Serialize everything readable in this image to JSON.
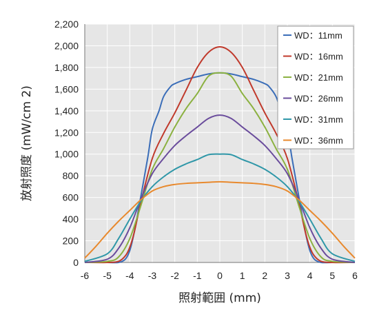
{
  "chart_data": {
    "type": "line",
    "xlabel": "照射範囲 (mm)",
    "ylabel": "放射照度 (mW/cm 2)",
    "xlim": [
      -6,
      6
    ],
    "ylim": [
      0,
      2200
    ],
    "xticks": [
      -6,
      -5,
      -4,
      -3,
      -2,
      -1,
      0,
      1,
      2,
      3,
      4,
      5,
      6
    ],
    "yticks": [
      0,
      200,
      400,
      600,
      800,
      1000,
      1200,
      1400,
      1600,
      1800,
      2000,
      2200
    ],
    "ytick_labels": [
      "0",
      "200",
      "400",
      "600",
      "800",
      "1,000",
      "1,200",
      "1,400",
      "1,600",
      "1,800",
      "2,000",
      "2,200"
    ],
    "grid": true,
    "legend_position": "top-right",
    "series": [
      {
        "name": "WD：11mm",
        "color": "#3a6db8",
        "x": [
          -6,
          -5,
          -4.5,
          -4.2,
          -4,
          -3.8,
          -3.5,
          -3.2,
          -3,
          -2.7,
          -2.5,
          -2.2,
          -2,
          -1.5,
          -1,
          -0.5,
          0,
          0.5,
          1,
          1.5,
          2,
          2.2,
          2.5,
          2.7,
          3,
          3.2,
          3.5,
          3.8,
          4,
          4.2,
          4.5,
          5,
          6
        ],
        "y": [
          0,
          0,
          0,
          30,
          110,
          280,
          620,
          970,
          1230,
          1400,
          1530,
          1620,
          1650,
          1690,
          1715,
          1740,
          1750,
          1740,
          1715,
          1690,
          1650,
          1620,
          1530,
          1400,
          1230,
          970,
          620,
          280,
          110,
          30,
          0,
          0,
          0
        ]
      },
      {
        "name": "WD：16mm",
        "color": "#c0392b",
        "x": [
          -6,
          -5,
          -4.5,
          -4.2,
          -4,
          -3.8,
          -3.5,
          -3,
          -2.5,
          -2,
          -1.5,
          -1,
          -0.5,
          0,
          0.5,
          1,
          1.5,
          2,
          2.5,
          3,
          3.5,
          3.8,
          4,
          4.2,
          4.5,
          5,
          6
        ],
        "y": [
          0,
          0,
          10,
          60,
          140,
          280,
          560,
          960,
          1190,
          1380,
          1590,
          1800,
          1940,
          1990,
          1940,
          1800,
          1590,
          1380,
          1190,
          960,
          560,
          280,
          140,
          60,
          10,
          0,
          0
        ]
      },
      {
        "name": "WD：21mm",
        "color": "#8bb140",
        "x": [
          -6,
          -5,
          -4.5,
          -4,
          -3.5,
          -3,
          -2.5,
          -2,
          -1.5,
          -1,
          -0.5,
          0,
          0.5,
          1,
          1.5,
          2,
          2.5,
          3,
          3.5,
          4,
          4.5,
          5,
          6
        ],
        "y": [
          0,
          10,
          50,
          220,
          530,
          860,
          1050,
          1250,
          1420,
          1560,
          1720,
          1750,
          1720,
          1560,
          1420,
          1250,
          1050,
          860,
          530,
          220,
          50,
          10,
          0
        ]
      },
      {
        "name": "WD：26mm",
        "color": "#6a4c9c",
        "x": [
          -6,
          -5,
          -4.5,
          -4,
          -3.5,
          -3,
          -2.5,
          -2,
          -1.5,
          -1,
          -0.5,
          0,
          0.5,
          1,
          1.5,
          2,
          2.5,
          3,
          3.5,
          4,
          4.5,
          5,
          6
        ],
        "y": [
          0,
          30,
          130,
          320,
          590,
          820,
          960,
          1080,
          1170,
          1250,
          1330,
          1360,
          1330,
          1250,
          1170,
          1080,
          960,
          820,
          590,
          320,
          130,
          30,
          0
        ]
      },
      {
        "name": "WD：31mm",
        "color": "#2f97a8",
        "x": [
          -6,
          -5,
          -4.5,
          -4,
          -3.5,
          -3,
          -2.5,
          -2,
          -1.5,
          -1,
          -0.5,
          0,
          0.5,
          1,
          1.5,
          2,
          2.5,
          3,
          3.5,
          4,
          4.5,
          5,
          6
        ],
        "y": [
          10,
          80,
          220,
          400,
          570,
          700,
          790,
          860,
          910,
          950,
          995,
          1000,
          995,
          950,
          910,
          860,
          790,
          700,
          570,
          400,
          220,
          80,
          10
        ]
      },
      {
        "name": "WD：36mm",
        "color": "#e8892d",
        "x": [
          -6,
          -5.5,
          -5,
          -4.5,
          -4,
          -3.5,
          -3,
          -2.5,
          -2,
          -1.5,
          -1,
          -0.5,
          0,
          0.5,
          1,
          1.5,
          2,
          2.5,
          3,
          3.5,
          4,
          4.5,
          5,
          5.5,
          6
        ],
        "y": [
          40,
          150,
          270,
          380,
          480,
          580,
          660,
          700,
          720,
          730,
          735,
          740,
          745,
          740,
          735,
          730,
          720,
          700,
          660,
          580,
          480,
          380,
          270,
          150,
          40
        ]
      }
    ]
  }
}
